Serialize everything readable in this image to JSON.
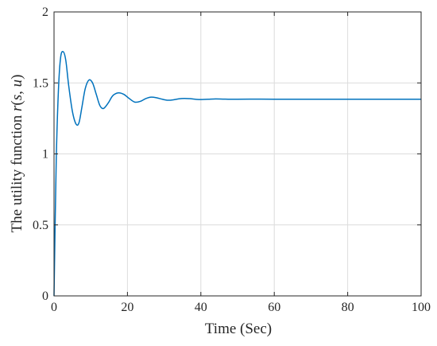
{
  "chart_data": {
    "type": "line",
    "xlabel": "Time (Sec)",
    "ylabel": {
      "prefix": "The utility function ",
      "symbol": "r",
      "args_open": "(",
      "arg1": "s",
      "sep": ", ",
      "arg2": "u",
      "args_close": ")"
    },
    "xlim": [
      0,
      100
    ],
    "ylim": [
      0,
      2
    ],
    "x_ticks": [
      0,
      20,
      40,
      60,
      80,
      100
    ],
    "y_ticks": [
      0,
      0.5,
      1,
      1.5,
      2
    ],
    "x_tick_labels": [
      "0",
      "20",
      "40",
      "60",
      "80",
      "100"
    ],
    "y_tick_labels": [
      "0",
      "0.5",
      "1",
      "1.5",
      "2"
    ],
    "grid": true,
    "box": true,
    "colors": {
      "line": "#0072BD",
      "axes": "#262626",
      "grid": "#dcdcdc"
    },
    "series": [
      {
        "x": [
          0,
          0.6,
          1.2,
          1.8,
          2.5,
          3.2,
          4.0,
          5.0,
          6.0,
          6.8,
          7.6,
          8.5,
          9.5,
          10.5,
          11.5,
          12.5,
          13.5,
          14.8,
          16.0,
          17.5,
          19.0,
          20.5,
          22.0,
          23.5,
          25.0,
          26.5,
          28.0,
          29.5,
          31.0,
          32.5,
          34.0,
          35.5,
          37.0,
          38.5,
          40.0,
          42.0,
          44.0,
          46.0,
          48.0,
          50.0,
          55.0,
          60.0,
          70.0,
          80.0,
          90.0,
          100.0
        ],
        "y": [
          0,
          0.95,
          1.45,
          1.68,
          1.72,
          1.66,
          1.48,
          1.3,
          1.21,
          1.22,
          1.33,
          1.46,
          1.52,
          1.5,
          1.42,
          1.34,
          1.32,
          1.36,
          1.41,
          1.43,
          1.42,
          1.39,
          1.365,
          1.37,
          1.39,
          1.4,
          1.395,
          1.385,
          1.378,
          1.381,
          1.388,
          1.391,
          1.389,
          1.385,
          1.383,
          1.385,
          1.387,
          1.386,
          1.385,
          1.385,
          1.386,
          1.385,
          1.385,
          1.385,
          1.385,
          1.385
        ]
      }
    ]
  }
}
